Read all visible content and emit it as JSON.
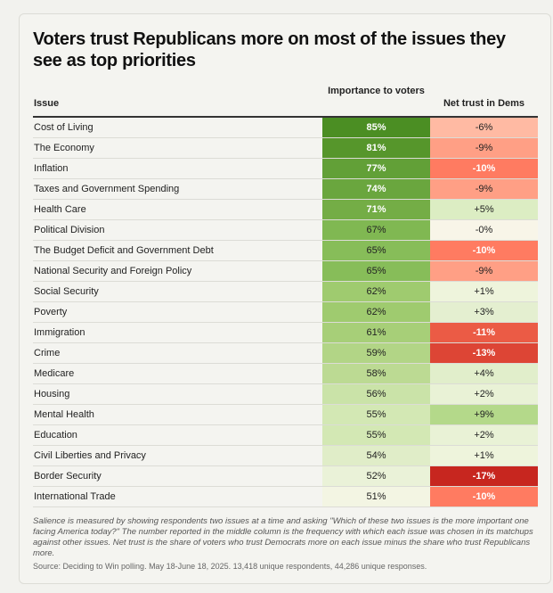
{
  "chart_data": {
    "type": "table",
    "title": "Voters trust Republicans more on most of the issues they see as top priorities",
    "columns": [
      "Issue",
      "Importance to voters",
      "Net trust in Dems"
    ],
    "rows": [
      {
        "issue": "Cost of Living",
        "importance": "85%",
        "trust": "-6%",
        "imp_color": "#4b8e23",
        "trust_color": "#ffbaa3",
        "imp_white": true,
        "trust_white": false
      },
      {
        "issue": "The Economy",
        "importance": "81%",
        "trust": "-9%",
        "imp_color": "#56962b",
        "trust_color": "#ff9f85",
        "imp_white": true,
        "trust_white": false
      },
      {
        "issue": "Inflation",
        "importance": "77%",
        "trust": "-10%",
        "imp_color": "#62a037",
        "trust_color": "#ff7b61",
        "imp_white": true,
        "trust_white": true
      },
      {
        "issue": "Taxes and Government Spending",
        "importance": "74%",
        "trust": "-9%",
        "imp_color": "#6aa63e",
        "trust_color": "#ff9f85",
        "imp_white": true,
        "trust_white": false
      },
      {
        "issue": "Health Care",
        "importance": "71%",
        "trust": "+5%",
        "imp_color": "#74ad46",
        "trust_color": "#dcedc3",
        "imp_white": true,
        "trust_white": false
      },
      {
        "issue": "Political Division",
        "importance": "67%",
        "trust": "-0%",
        "imp_color": "#80b852",
        "trust_color": "#f8f5e8",
        "imp_white": false,
        "trust_white": false
      },
      {
        "issue": "The Budget Deficit and Government Debt",
        "importance": "65%",
        "trust": "-10%",
        "imp_color": "#87bd59",
        "trust_color": "#ff7b61",
        "imp_white": false,
        "trust_white": true
      },
      {
        "issue": "National Security and Foreign Policy",
        "importance": "65%",
        "trust": "-9%",
        "imp_color": "#87bd59",
        "trust_color": "#ff9f85",
        "imp_white": false,
        "trust_white": false
      },
      {
        "issue": "Social Security",
        "importance": "62%",
        "trust": "+1%",
        "imp_color": "#9fcb6f",
        "trust_color": "#eef4dc",
        "imp_white": false,
        "trust_white": false
      },
      {
        "issue": "Poverty",
        "importance": "62%",
        "trust": "+3%",
        "imp_color": "#9fcb6f",
        "trust_color": "#e4efd0",
        "imp_white": false,
        "trust_white": false
      },
      {
        "issue": "Immigration",
        "importance": "61%",
        "trust": "-11%",
        "imp_color": "#a7cf78",
        "trust_color": "#eb5b45",
        "imp_white": false,
        "trust_white": true
      },
      {
        "issue": "Crime",
        "importance": "59%",
        "trust": "-13%",
        "imp_color": "#b2d586",
        "trust_color": "#dd4535",
        "imp_white": false,
        "trust_white": true
      },
      {
        "issue": "Medicare",
        "importance": "58%",
        "trust": "+4%",
        "imp_color": "#bcda93",
        "trust_color": "#e1eecb",
        "imp_white": false,
        "trust_white": false
      },
      {
        "issue": "Housing",
        "importance": "56%",
        "trust": "+2%",
        "imp_color": "#cae3a8",
        "trust_color": "#e9f2d6",
        "imp_white": false,
        "trust_white": false
      },
      {
        "issue": "Mental Health",
        "importance": "55%",
        "trust": "+9%",
        "imp_color": "#d3e8b4",
        "trust_color": "#b4d98a",
        "imp_white": false,
        "trust_white": false
      },
      {
        "issue": "Education",
        "importance": "55%",
        "trust": "+2%",
        "imp_color": "#d3e8b4",
        "trust_color": "#e9f2d6",
        "imp_white": false,
        "trust_white": false
      },
      {
        "issue": "Civil Liberties and Privacy",
        "importance": "54%",
        "trust": "+1%",
        "imp_color": "#e0edc8",
        "trust_color": "#eef4dc",
        "imp_white": false,
        "trust_white": false
      },
      {
        "issue": "Border Security",
        "importance": "52%",
        "trust": "-17%",
        "imp_color": "#eaf2d8",
        "trust_color": "#c7261f",
        "imp_white": false,
        "trust_white": true
      },
      {
        "issue": "International Trade",
        "importance": "51%",
        "trust": "-10%",
        "imp_color": "#f3f5e3",
        "trust_color": "#ff7b61",
        "imp_white": false,
        "trust_white": true
      }
    ]
  },
  "footnote": "Salience is measured by showing respondents two issues at a time and asking \"Which of these two issues is the more important one facing America today?\" The number reported in the middle column is the frequency with which each issue was chosen in its matchups against other issues. Net trust is the share of voters who trust Democrats more on each issue minus the share who trust Republicans more.",
  "source": "Source: Deciding to Win polling. May 18-June 18, 2025. 13,418 unique respondents, 44,286 unique responses."
}
